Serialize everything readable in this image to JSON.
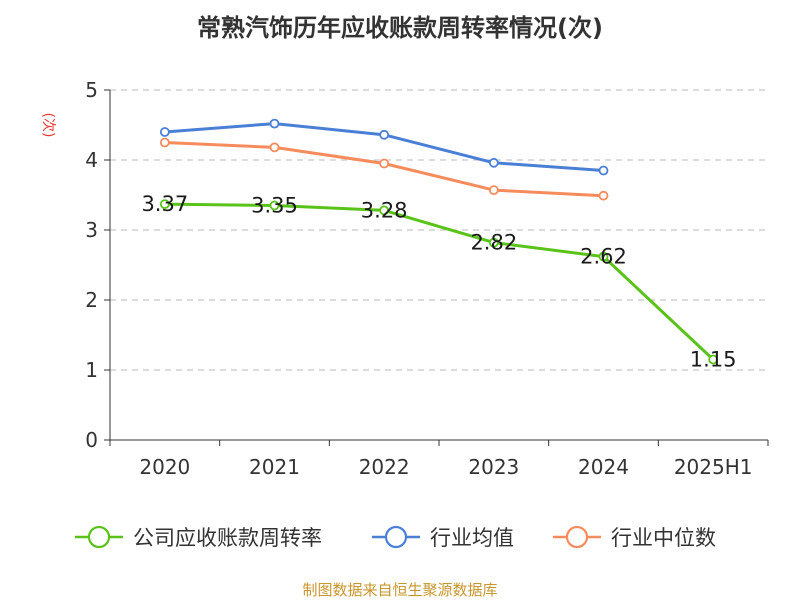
{
  "chart_data": {
    "type": "line",
    "title": "常熟汽饰历年应收账款周转率情况(次)",
    "ylabel": "(次)",
    "xlabel": "",
    "categories": [
      "2020",
      "2021",
      "2022",
      "2023",
      "2024",
      "2025H1"
    ],
    "ylim": [
      0,
      5
    ],
    "yticks": [
      0,
      1,
      2,
      3,
      4,
      5
    ],
    "grid": true,
    "legend_position": "bottom",
    "series": [
      {
        "name": "公司应收账款周转率",
        "color": "#5ac31a",
        "values": [
          3.37,
          3.35,
          3.28,
          2.82,
          2.62,
          1.15
        ],
        "labels": [
          "3.37",
          "3.35",
          "3.28",
          "2.82",
          "2.62",
          "1.15"
        ]
      },
      {
        "name": "行业均值",
        "color": "#4a7fd6",
        "values": [
          4.4,
          4.52,
          4.36,
          3.96,
          3.85,
          null
        ]
      },
      {
        "name": "行业中位数",
        "color": "#f68c5c",
        "values": [
          4.25,
          4.18,
          3.95,
          3.57,
          3.49,
          null
        ]
      }
    ]
  },
  "footer": {
    "source": "制图数据来自恒生聚源数据库"
  }
}
